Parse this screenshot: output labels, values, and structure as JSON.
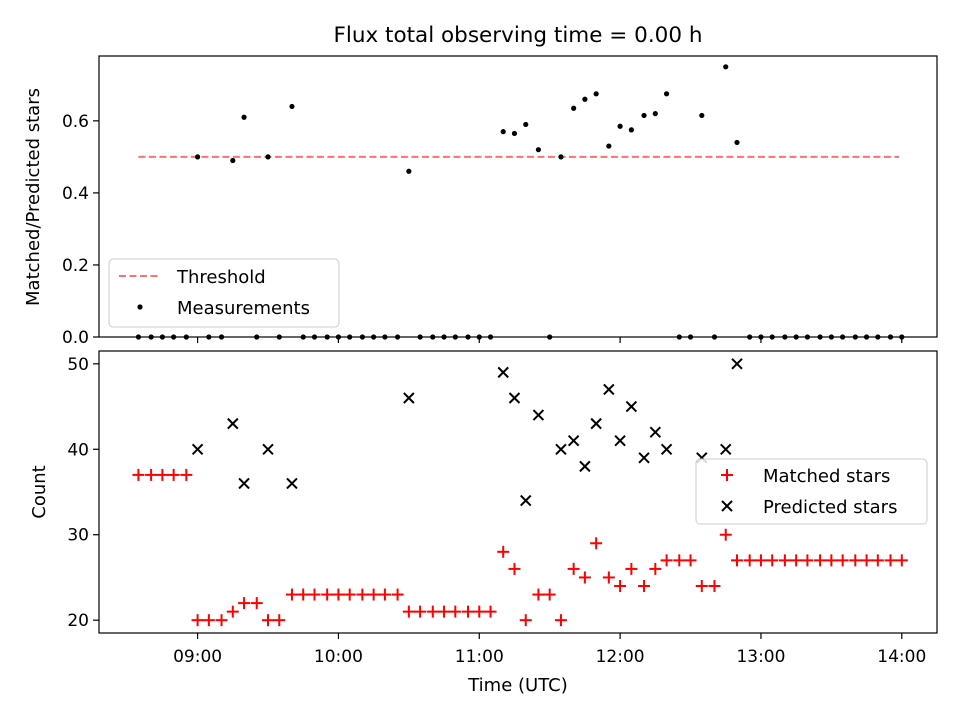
{
  "figure": {
    "title": "Flux total observing time = 0.00 h"
  },
  "chart_data": [
    {
      "type": "scatter",
      "ylabel": "Matched/Predicted stars",
      "xlim": [
        8.3,
        14.25
      ],
      "ylim": [
        0,
        0.78
      ],
      "yticks": [
        0.0,
        0.2,
        0.4,
        0.6
      ],
      "legend": "lower-left",
      "threshold": {
        "name": "Threshold",
        "value": 0.5,
        "x": [
          8.58,
          13.98
        ],
        "color": "#ff7070"
      },
      "series": [
        {
          "name": "Measurements",
          "color": "#000000",
          "points": [
            [
              8.58,
              0
            ],
            [
              8.67,
              0
            ],
            [
              8.75,
              0
            ],
            [
              8.83,
              0
            ],
            [
              8.92,
              0
            ],
            [
              9.0,
              0.5
            ],
            [
              9.08,
              0
            ],
            [
              9.17,
              0
            ],
            [
              9.25,
              0.49
            ],
            [
              9.33,
              0.61
            ],
            [
              9.42,
              0
            ],
            [
              9.5,
              0.5
            ],
            [
              9.58,
              0
            ],
            [
              9.67,
              0.64
            ],
            [
              9.75,
              0
            ],
            [
              9.83,
              0
            ],
            [
              9.92,
              0
            ],
            [
              10.0,
              0
            ],
            [
              10.08,
              0
            ],
            [
              10.17,
              0
            ],
            [
              10.25,
              0
            ],
            [
              10.33,
              0
            ],
            [
              10.42,
              0
            ],
            [
              10.5,
              0.46
            ],
            [
              10.58,
              0
            ],
            [
              10.67,
              0
            ],
            [
              10.75,
              0
            ],
            [
              10.83,
              0
            ],
            [
              10.92,
              0
            ],
            [
              11.0,
              0
            ],
            [
              11.08,
              0
            ],
            [
              11.17,
              0.57
            ],
            [
              11.25,
              0.565
            ],
            [
              11.33,
              0.59
            ],
            [
              11.42,
              0.52
            ],
            [
              11.5,
              0
            ],
            [
              11.58,
              0.5
            ],
            [
              11.67,
              0.635
            ],
            [
              11.75,
              0.66
            ],
            [
              11.83,
              0.675
            ],
            [
              11.92,
              0.53
            ],
            [
              12.0,
              0.585
            ],
            [
              12.08,
              0.575
            ],
            [
              12.17,
              0.615
            ],
            [
              12.25,
              0.62
            ],
            [
              12.33,
              0.675
            ],
            [
              12.42,
              0
            ],
            [
              12.5,
              0
            ],
            [
              12.58,
              0.615
            ],
            [
              12.67,
              0
            ],
            [
              12.75,
              0.75
            ],
            [
              12.83,
              0.54
            ],
            [
              12.92,
              0
            ],
            [
              13.0,
              0
            ],
            [
              13.08,
              0
            ],
            [
              13.17,
              0
            ],
            [
              13.25,
              0
            ],
            [
              13.33,
              0
            ],
            [
              13.42,
              0
            ],
            [
              13.5,
              0
            ],
            [
              13.58,
              0
            ],
            [
              13.67,
              0
            ],
            [
              13.75,
              0
            ],
            [
              13.83,
              0
            ],
            [
              13.92,
              0
            ],
            [
              14.0,
              0
            ]
          ]
        }
      ]
    },
    {
      "type": "scatter",
      "xlabel": "Time (UTC)",
      "ylabel": "Count",
      "xlim": [
        8.3,
        14.25
      ],
      "ylim": [
        18.5,
        51.5
      ],
      "xticks": [
        {
          "value": 9,
          "label": "09:00"
        },
        {
          "value": 10,
          "label": "10:00"
        },
        {
          "value": 11,
          "label": "11:00"
        },
        {
          "value": 12,
          "label": "12:00"
        },
        {
          "value": 13,
          "label": "13:00"
        },
        {
          "value": 14,
          "label": "14:00"
        }
      ],
      "yticks": [
        20,
        30,
        40,
        50
      ],
      "legend": "center-right",
      "series": [
        {
          "name": "Matched stars",
          "marker": "plus",
          "color": "#ff0000",
          "points": [
            [
              8.58,
              37
            ],
            [
              8.67,
              37
            ],
            [
              8.75,
              37
            ],
            [
              8.83,
              37
            ],
            [
              8.92,
              37
            ],
            [
              9.0,
              20
            ],
            [
              9.08,
              20
            ],
            [
              9.17,
              20
            ],
            [
              9.25,
              21
            ],
            [
              9.33,
              22
            ],
            [
              9.42,
              22
            ],
            [
              9.5,
              20
            ],
            [
              9.58,
              20
            ],
            [
              9.67,
              23
            ],
            [
              9.75,
              23
            ],
            [
              9.83,
              23
            ],
            [
              9.92,
              23
            ],
            [
              10.0,
              23
            ],
            [
              10.08,
              23
            ],
            [
              10.17,
              23
            ],
            [
              10.25,
              23
            ],
            [
              10.33,
              23
            ],
            [
              10.42,
              23
            ],
            [
              10.5,
              21
            ],
            [
              10.58,
              21
            ],
            [
              10.67,
              21
            ],
            [
              10.75,
              21
            ],
            [
              10.83,
              21
            ],
            [
              10.92,
              21
            ],
            [
              11.0,
              21
            ],
            [
              11.08,
              21
            ],
            [
              11.17,
              28
            ],
            [
              11.25,
              26
            ],
            [
              11.33,
              20
            ],
            [
              11.42,
              23
            ],
            [
              11.5,
              23
            ],
            [
              11.58,
              20
            ],
            [
              11.67,
              26
            ],
            [
              11.75,
              25
            ],
            [
              11.83,
              29
            ],
            [
              11.92,
              25
            ],
            [
              12.0,
              24
            ],
            [
              12.08,
              26
            ],
            [
              12.17,
              24
            ],
            [
              12.25,
              26
            ],
            [
              12.33,
              27
            ],
            [
              12.42,
              27
            ],
            [
              12.5,
              27
            ],
            [
              12.58,
              24
            ],
            [
              12.67,
              24
            ],
            [
              12.75,
              30
            ],
            [
              12.83,
              27
            ],
            [
              12.92,
              27
            ],
            [
              13.0,
              27
            ],
            [
              13.08,
              27
            ],
            [
              13.17,
              27
            ],
            [
              13.25,
              27
            ],
            [
              13.33,
              27
            ],
            [
              13.42,
              27
            ],
            [
              13.5,
              27
            ],
            [
              13.58,
              27
            ],
            [
              13.67,
              27
            ],
            [
              13.75,
              27
            ],
            [
              13.83,
              27
            ],
            [
              13.92,
              27
            ],
            [
              14.0,
              27
            ]
          ]
        },
        {
          "name": "Predicted stars",
          "marker": "x",
          "color": "#000000",
          "points": [
            [
              9.0,
              40
            ],
            [
              9.25,
              43
            ],
            [
              9.33,
              36
            ],
            [
              9.5,
              40
            ],
            [
              9.67,
              36
            ],
            [
              10.5,
              46
            ],
            [
              11.17,
              49
            ],
            [
              11.25,
              46
            ],
            [
              11.33,
              34
            ],
            [
              11.42,
              44
            ],
            [
              11.58,
              40
            ],
            [
              11.67,
              41
            ],
            [
              11.75,
              38
            ],
            [
              11.83,
              43
            ],
            [
              11.92,
              47
            ],
            [
              12.0,
              41
            ],
            [
              12.08,
              45
            ],
            [
              12.17,
              39
            ],
            [
              12.25,
              42
            ],
            [
              12.33,
              40
            ],
            [
              12.58,
              39
            ],
            [
              12.75,
              40
            ],
            [
              12.83,
              50
            ]
          ]
        }
      ]
    }
  ]
}
